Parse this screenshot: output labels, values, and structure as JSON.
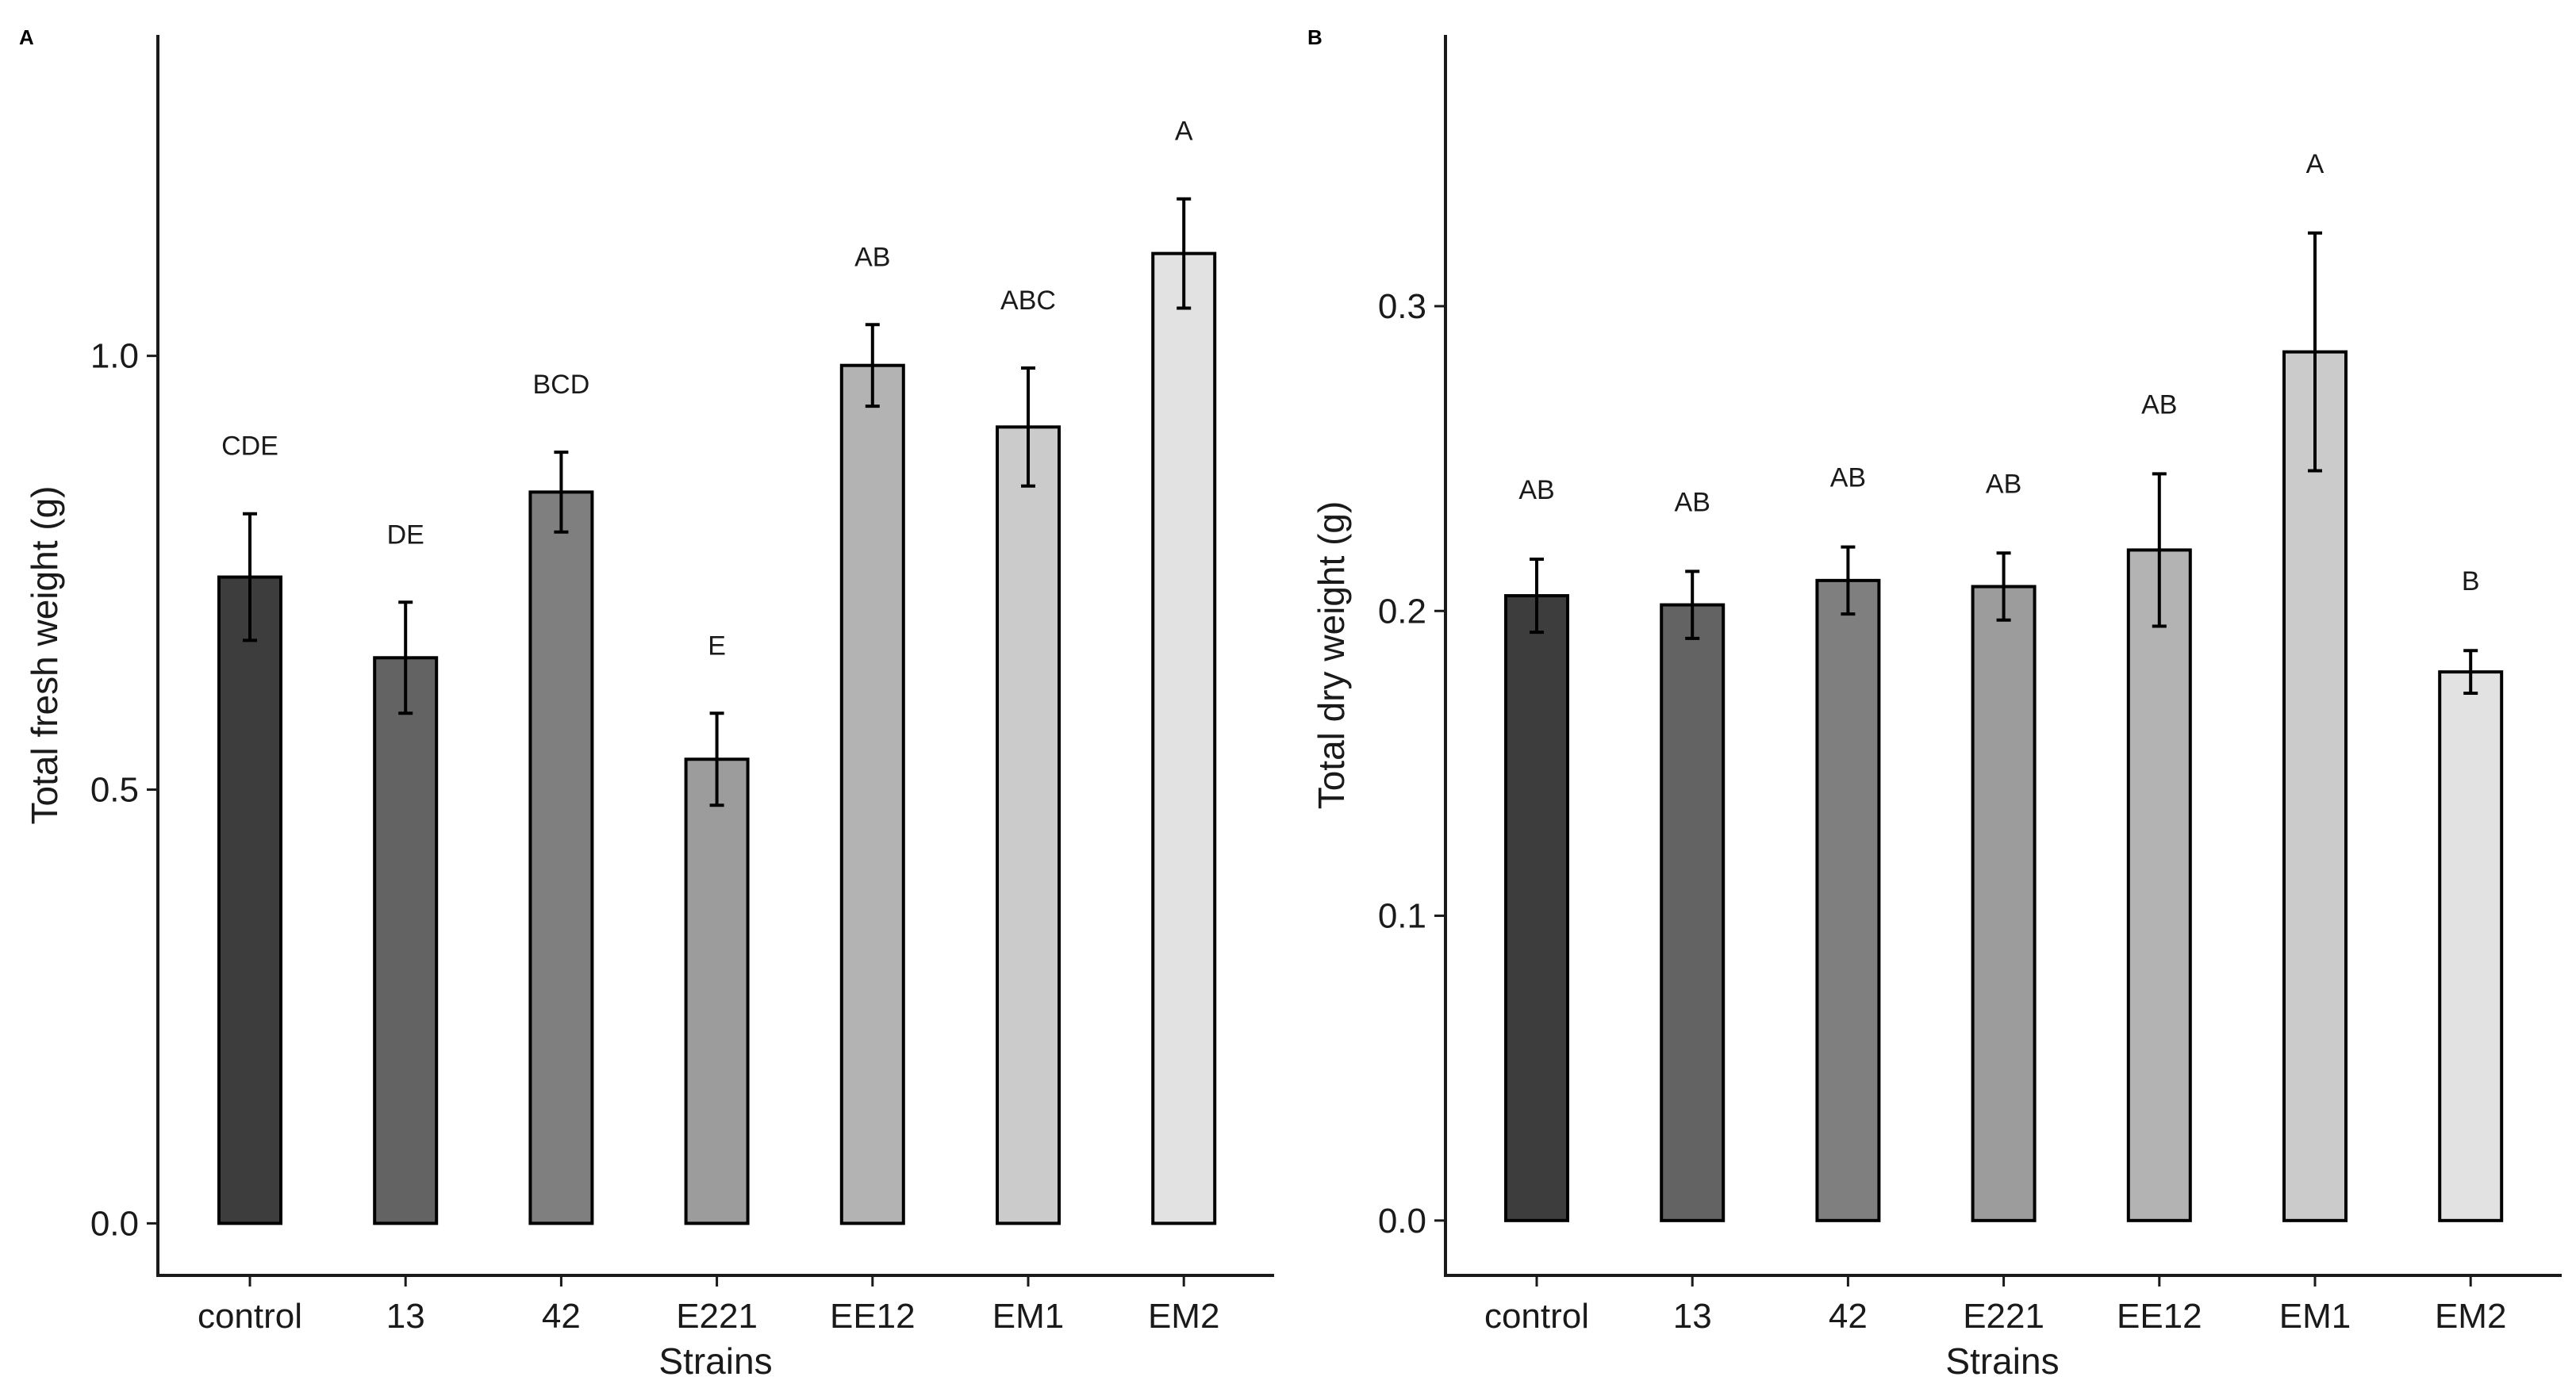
{
  "chart_data": [
    {
      "panel_label": "A",
      "type": "bar",
      "xlabel": "Strains",
      "ylabel": "Total fresh weight (g)",
      "categories": [
        "control",
        "13",
        "42",
        "E221",
        "EE12",
        "EM1",
        "EM2"
      ],
      "values": [
        0.745,
        0.652,
        0.843,
        0.535,
        0.989,
        0.918,
        1.118
      ],
      "errors": [
        0.073,
        0.064,
        0.046,
        0.053,
        0.047,
        0.068,
        0.063
      ],
      "letters": [
        "CDE",
        "DE",
        "BCD",
        "E",
        "AB",
        "ABC",
        "A"
      ],
      "colors": [
        "#3d3d3d",
        "#636363",
        "#7f7f7f",
        "#9c9c9c",
        "#b3b3b3",
        "#cbcbcb",
        "#e2e2e2"
      ],
      "yticks": [
        0.0,
        0.5,
        1.0
      ],
      "ytick_labels": [
        "0.0",
        "0.5",
        "1.0"
      ],
      "ylim": [
        -0.06,
        1.37
      ]
    },
    {
      "panel_label": "B",
      "type": "bar",
      "xlabel": "Strains",
      "ylabel": "Total dry weight (g)",
      "categories": [
        "control",
        "13",
        "42",
        "E221",
        "EE12",
        "EM1",
        "EM2"
      ],
      "values": [
        0.205,
        0.202,
        0.21,
        0.208,
        0.22,
        0.285,
        0.18
      ],
      "errors": [
        0.012,
        0.011,
        0.011,
        0.011,
        0.025,
        0.039,
        0.007
      ],
      "letters": [
        "AB",
        "AB",
        "AB",
        "AB",
        "AB",
        "A",
        "B"
      ],
      "colors": [
        "#3d3d3d",
        "#636363",
        "#7f7f7f",
        "#9c9c9c",
        "#b3b3b3",
        "#cbcbcb",
        "#e2e2e2"
      ],
      "yticks": [
        0.0,
        0.1,
        0.2,
        0.3
      ],
      "ytick_labels": [
        "0.0",
        "0.1",
        "0.2",
        "0.3"
      ],
      "ylim": [
        -0.018,
        0.389
      ]
    }
  ]
}
